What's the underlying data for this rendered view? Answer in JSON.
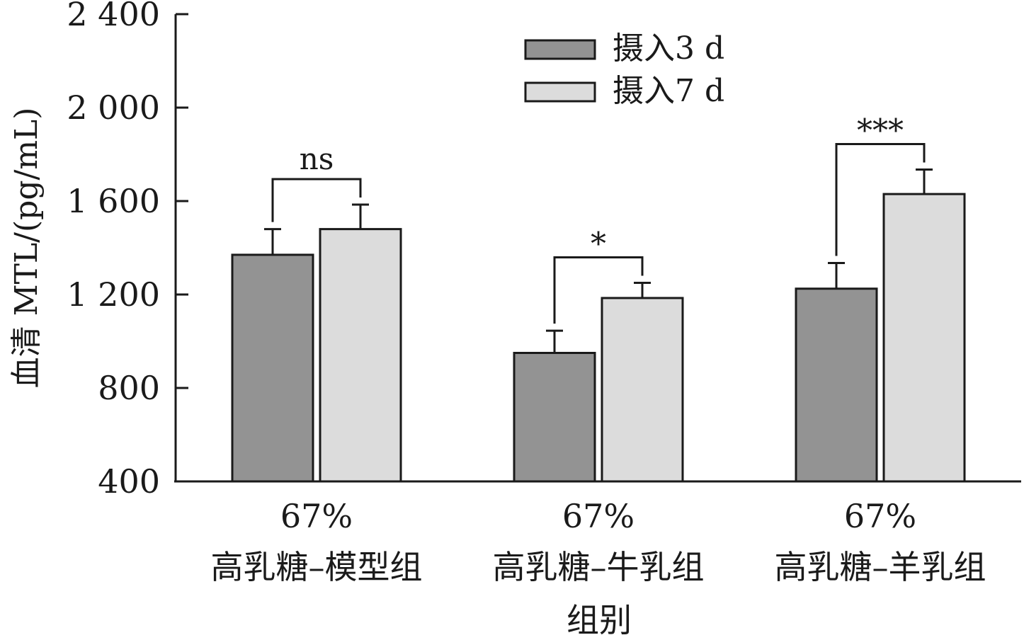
{
  "chart_data": {
    "type": "bar",
    "title": "",
    "xlabel": "组别",
    "ylabel": "血清 MTL/(pg/mL)",
    "ylim": [
      400,
      2400
    ],
    "yticks": [
      400,
      800,
      1200,
      1600,
      2000,
      2400
    ],
    "ytick_labels": [
      "400",
      "800",
      "1 200",
      "1 600",
      "2 000",
      "2 400"
    ],
    "categories": [
      {
        "line1": "67%",
        "line2": "高乳糖–模型组"
      },
      {
        "line1": "67%",
        "line2": "高乳糖–牛乳组"
      },
      {
        "line1": "67%",
        "line2": "高乳糖–羊乳组"
      }
    ],
    "series": [
      {
        "name": "摄入3 d",
        "color": "#939393",
        "values": [
          1370,
          950,
          1225
        ],
        "errors": [
          110,
          95,
          110
        ]
      },
      {
        "name": "摄入7 d",
        "color": "#dcdcdc",
        "values": [
          1480,
          1185,
          1630
        ],
        "errors": [
          105,
          65,
          105
        ]
      }
    ],
    "significance": [
      "ns",
      "*",
      "***"
    ],
    "legend_position": "top-center",
    "grid": false
  }
}
